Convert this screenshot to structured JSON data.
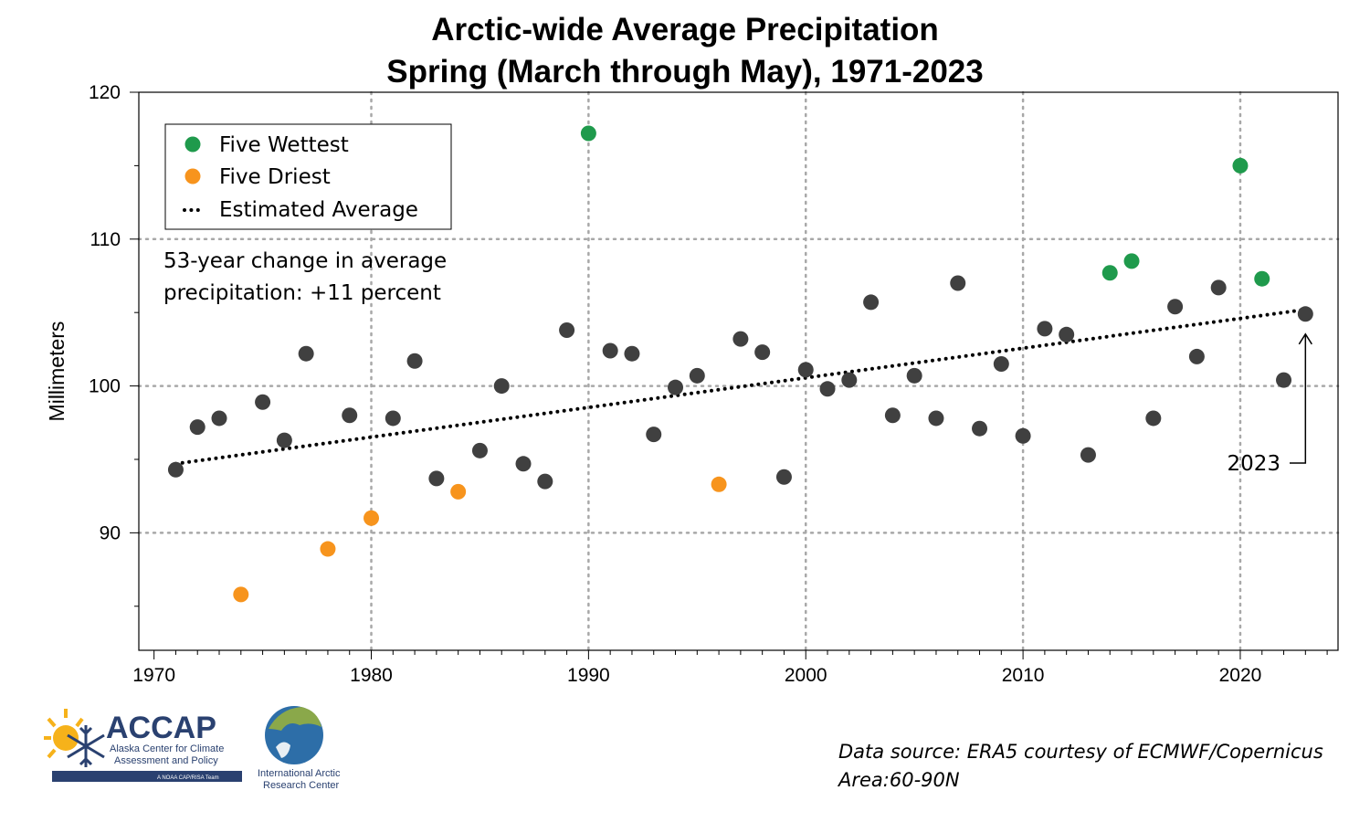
{
  "chart_data": {
    "type": "scatter",
    "title": "Arctic-wide Average Precipitation",
    "subtitle": "Spring (March through May), 1971-2023",
    "xlabel": "",
    "ylabel": "Millimeters",
    "xlim": [
      1969.3,
      2024.5
    ],
    "ylim": [
      82,
      120
    ],
    "x_ticks": [
      1970,
      1980,
      1990,
      2000,
      2010,
      2020
    ],
    "y_ticks": [
      90,
      100,
      110,
      120
    ],
    "grid": true,
    "legend": {
      "placement": "top-left",
      "entries": [
        "Five Wettest",
        "Five Driest",
        "Estimated Average"
      ]
    },
    "series": [
      {
        "name": "",
        "color": "#404040",
        "points": [
          [
            1971,
            94.3
          ],
          [
            1972,
            97.2
          ],
          [
            1973,
            97.8
          ],
          [
            1975,
            98.9
          ],
          [
            1976,
            96.3
          ],
          [
            1977,
            102.2
          ],
          [
            1979,
            98.0
          ],
          [
            1981,
            97.8
          ],
          [
            1982,
            101.7
          ],
          [
            1983,
            93.7
          ],
          [
            1985,
            95.6
          ],
          [
            1986,
            100.0
          ],
          [
            1987,
            94.7
          ],
          [
            1988,
            93.5
          ],
          [
            1989,
            103.8
          ],
          [
            1991,
            102.4
          ],
          [
            1992,
            102.2
          ],
          [
            1993,
            96.7
          ],
          [
            1994,
            99.9
          ],
          [
            1995,
            100.7
          ],
          [
            1997,
            103.2
          ],
          [
            1998,
            102.3
          ],
          [
            1999,
            93.8
          ],
          [
            2000,
            101.1
          ],
          [
            2001,
            99.8
          ],
          [
            2002,
            100.4
          ],
          [
            2003,
            105.7
          ],
          [
            2004,
            98.0
          ],
          [
            2005,
            100.7
          ],
          [
            2006,
            97.8
          ],
          [
            2007,
            107.0
          ],
          [
            2008,
            97.1
          ],
          [
            2009,
            101.5
          ],
          [
            2010,
            96.6
          ],
          [
            2011,
            103.9
          ],
          [
            2012,
            103.5
          ],
          [
            2013,
            95.3
          ],
          [
            2016,
            97.8
          ],
          [
            2017,
            105.4
          ],
          [
            2018,
            102.0
          ],
          [
            2019,
            106.7
          ],
          [
            2022,
            100.4
          ],
          [
            2023,
            104.9
          ]
        ]
      },
      {
        "name": "Five Wettest",
        "color": "#1f9a4c",
        "points": [
          [
            1990,
            117.2
          ],
          [
            2014,
            107.7
          ],
          [
            2015,
            108.5
          ],
          [
            2020,
            115.0
          ],
          [
            2021,
            107.3
          ]
        ]
      },
      {
        "name": "Five Driest",
        "color": "#f7941d",
        "points": [
          [
            1974,
            85.8
          ],
          [
            1978,
            88.9
          ],
          [
            1980,
            91.0
          ],
          [
            1984,
            92.8
          ],
          [
            1996,
            93.3
          ]
        ]
      },
      {
        "name": "Estimated Average",
        "type": "line",
        "style": "dotted",
        "color": "#000000",
        "x": [
          1971,
          2023
        ],
        "y": [
          94.7,
          105.2
        ]
      }
    ],
    "annotations": [
      {
        "text_lines": [
          "53-year change in average",
          "precipitation: +11 percent"
        ]
      },
      {
        "text": "2023",
        "points_to": [
          2023,
          104.9
        ]
      }
    ]
  },
  "source_lines": [
    "Data source: ERA5 courtesy of ECMWF/Copernicus",
    "Area:60-90N"
  ],
  "logos": {
    "accap": {
      "name": "ACCAP",
      "line1": "Alaska Center for Climate",
      "line2": "Assessment and Policy",
      "tagline": "A NOAA CAP/RISA Team",
      "color": "#2a4170",
      "sun_color": "#f6b21a"
    },
    "iarc": {
      "line1": "International Arctic",
      "line2": "Research Center"
    }
  }
}
